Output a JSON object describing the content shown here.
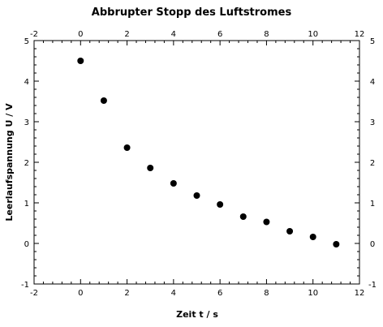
{
  "chart_data": {
    "type": "scatter",
    "title": "Abbrupter Stopp des Luftstromes",
    "xlabel": "Zeit t / s",
    "ylabel": "Leerlaufspannung U / V",
    "xlim": [
      -2,
      12
    ],
    "ylim": [
      -1,
      5
    ],
    "xticks": [
      -2,
      0,
      2,
      4,
      6,
      8,
      10,
      12
    ],
    "yticks": [
      -1,
      0,
      1,
      2,
      3,
      4,
      5
    ],
    "xtick_labels": [
      "-2",
      "0",
      "2",
      "4",
      "6",
      "8",
      "10",
      "12"
    ],
    "ytick_labels": [
      "-1",
      "0",
      "1",
      "2",
      "3",
      "4",
      "5"
    ],
    "grid": false,
    "ticks_on_all_sides": true,
    "tick_labels_mirrored": true,
    "marker_color": "#000000",
    "series": [
      {
        "x": [
          0,
          1,
          2,
          3,
          4,
          5,
          6,
          7,
          8,
          9,
          10,
          11
        ],
        "y": [
          4.5,
          3.52,
          2.36,
          1.86,
          1.48,
          1.18,
          0.96,
          0.66,
          0.53,
          0.3,
          0.16,
          -0.02
        ]
      }
    ]
  }
}
